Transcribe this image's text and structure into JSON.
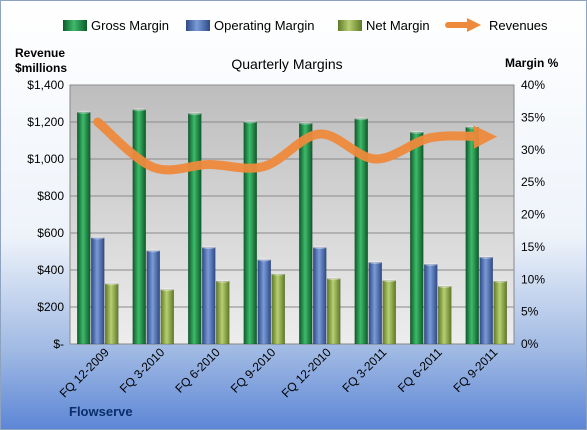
{
  "chart_data": {
    "type": "bar",
    "title": "Quarterly Margins",
    "company": "Flowserve",
    "categories": [
      "FQ 12-2009",
      "FQ 3-2010",
      "FQ 6-2010",
      "FQ 9-2010",
      "FQ 12-2010",
      "FQ 3-2011",
      "FQ 6-2011",
      "FQ 9-2011"
    ],
    "ylabel_left": [
      "Revenue",
      "$millions"
    ],
    "ylabel_right": "Margin %",
    "ylim_left": [
      0,
      1400
    ],
    "ylim_right": [
      0,
      40
    ],
    "left_ticks": [
      "$-",
      "$200",
      "$400",
      "$600",
      "$800",
      "$1,000",
      "$1,200",
      "$1,400"
    ],
    "right_ticks": [
      "0%",
      "5%",
      "10%",
      "15%",
      "20%",
      "25%",
      "30%",
      "35%",
      "40%"
    ],
    "legend_position": "top",
    "grid": true,
    "series": [
      {
        "name": "Gross Margin",
        "axis": "right",
        "color": "#1e8a45",
        "values": [
          35.8,
          36.2,
          35.6,
          34.3,
          34.1,
          34.8,
          32.7,
          33.5
        ]
      },
      {
        "name": "Operating Margin",
        "axis": "right",
        "color": "#4f6fb3",
        "values": [
          16.4,
          14.4,
          14.9,
          13.0,
          14.9,
          12.6,
          12.3,
          13.4
        ]
      },
      {
        "name": "Net Margin",
        "axis": "right",
        "color": "#8fad4a",
        "values": [
          9.3,
          8.4,
          9.7,
          10.8,
          10.1,
          9.8,
          8.9,
          9.7
        ]
      },
      {
        "name": "Revenues",
        "axis": "left",
        "type": "line",
        "color": "#ee8a3c",
        "values": [
          1200,
          955,
          970,
          960,
          1135,
          1000,
          1115,
          1120
        ]
      }
    ]
  }
}
